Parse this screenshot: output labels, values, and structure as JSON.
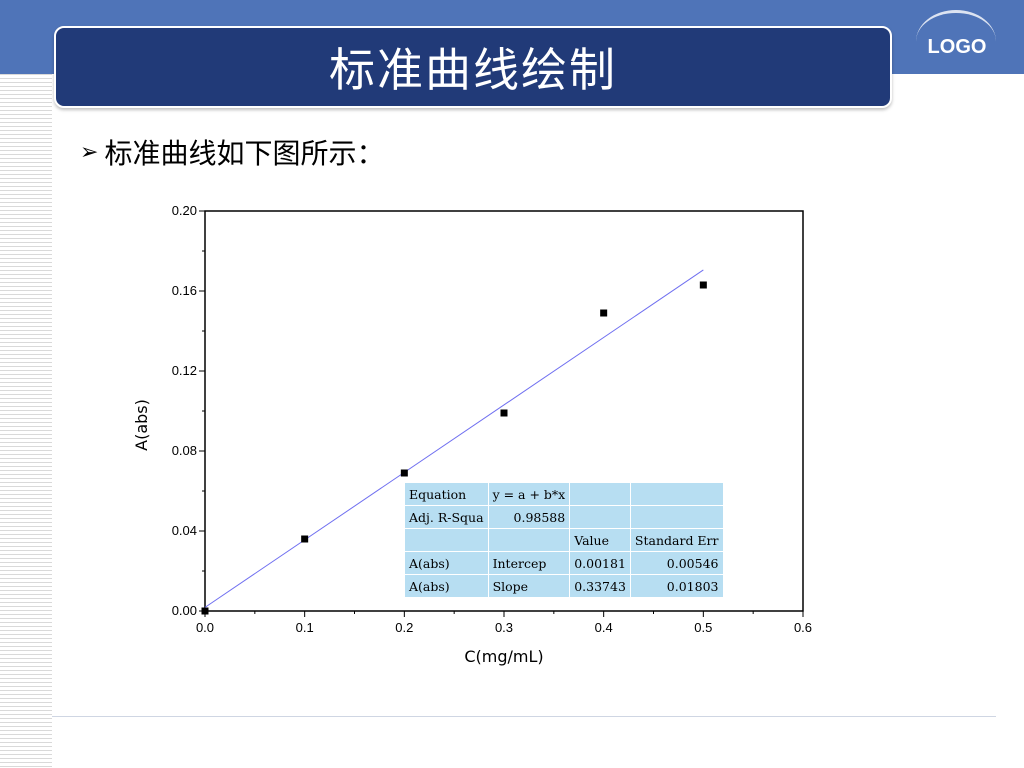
{
  "slide": {
    "title": "标准曲线绘制",
    "logo": "LOGO",
    "bullet_icon": "arrow-bullet-icon",
    "bullet_text": "标准曲线如下图所示："
  },
  "colors": {
    "header_band": "#4f74b8",
    "title_box": "#213a78",
    "fit_line": "#6f6ff0",
    "table_bg": "#b7def2"
  },
  "chart_data": {
    "type": "scatter",
    "xlabel": "C(mg/mL)",
    "ylabel": "A(abs)",
    "xlim": [
      0.0,
      0.6
    ],
    "ylim": [
      0.0,
      0.2
    ],
    "x_ticks": [
      "0.0",
      "0.1",
      "0.2",
      "0.3",
      "0.4",
      "0.5",
      "0.6"
    ],
    "y_ticks": [
      "0.00",
      "0.04",
      "0.08",
      "0.12",
      "0.16",
      "0.20"
    ],
    "x_tick_values": [
      0.0,
      0.1,
      0.2,
      0.3,
      0.4,
      0.5,
      0.6
    ],
    "y_tick_values": [
      0.0,
      0.04,
      0.08,
      0.12,
      0.16,
      0.2
    ],
    "points": [
      {
        "x": 0.0,
        "y": 0.0
      },
      {
        "x": 0.1,
        "y": 0.036
      },
      {
        "x": 0.2,
        "y": 0.069
      },
      {
        "x": 0.3,
        "y": 0.099
      },
      {
        "x": 0.4,
        "y": 0.149
      },
      {
        "x": 0.5,
        "y": 0.163
      }
    ],
    "fit": {
      "intercept": 0.00181,
      "slope": 0.33743,
      "x_range": [
        0.0,
        0.5
      ]
    },
    "grid": false,
    "fit_table": {
      "rows": [
        [
          "Equation",
          "y = a + b*x",
          "",
          ""
        ],
        [
          "Adj. R-Squa",
          "0.98588",
          "",
          ""
        ],
        [
          "",
          "",
          "Value",
          "Standard Err"
        ],
        [
          "A(abs)",
          "Intercep",
          "0.00181",
          "0.00546"
        ],
        [
          "A(abs)",
          "Slope",
          "0.33743",
          "0.01803"
        ]
      ]
    }
  }
}
